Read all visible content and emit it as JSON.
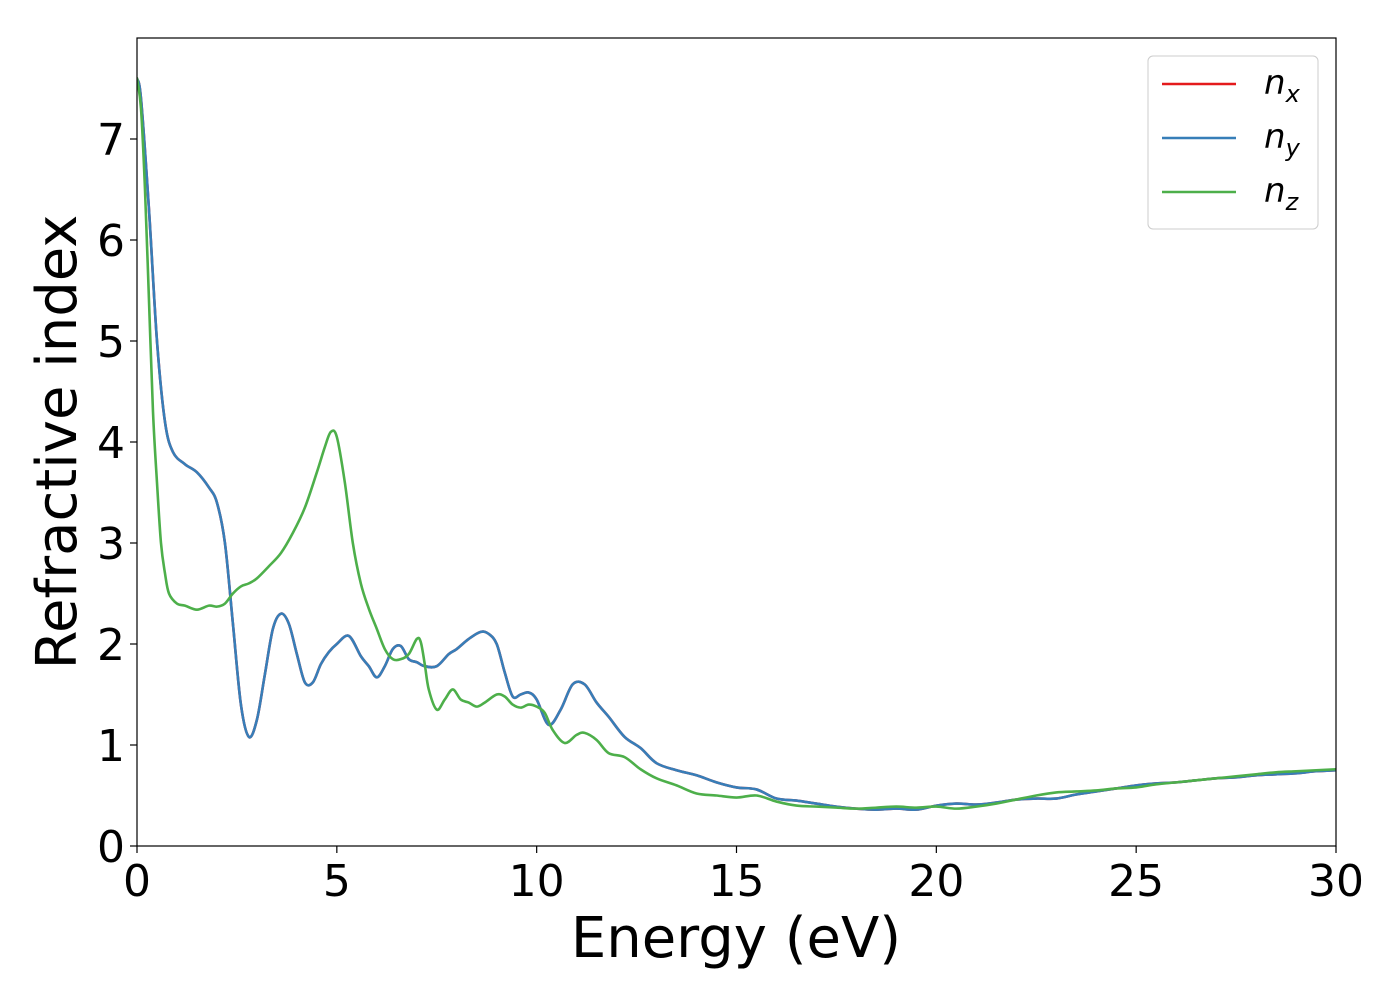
{
  "chart_data": {
    "type": "line",
    "xlabel": "Energy (eV)",
    "ylabel": "Refractive index",
    "xlim": [
      0,
      30
    ],
    "ylim": [
      0,
      8.0
    ],
    "xticks": [
      "0",
      "5",
      "10",
      "15",
      "20",
      "25",
      "30"
    ],
    "yticks": [
      "0",
      "1",
      "2",
      "3",
      "4",
      "5",
      "6",
      "7"
    ],
    "grid": false,
    "legend_position": "top-right",
    "colors": {
      "n_x": "#e41a1c",
      "n_y": "#377eb8",
      "n_z": "#4daf4a"
    },
    "series": [
      {
        "name": "n_x",
        "legend_base": "n",
        "legend_sub": "x",
        "x": [
          0,
          0.1,
          0.3,
          0.5,
          0.7,
          0.9,
          1.2,
          1.5,
          1.8,
          2.0,
          2.2,
          2.4,
          2.6,
          2.8,
          3.0,
          3.2,
          3.4,
          3.6,
          3.8,
          4.0,
          4.2,
          4.4,
          4.6,
          4.8,
          5.0,
          5.3,
          5.6,
          5.8,
          6.0,
          6.2,
          6.4,
          6.6,
          6.8,
          7.0,
          7.2,
          7.5,
          7.8,
          8.0,
          8.3,
          8.6,
          8.8,
          9.0,
          9.2,
          9.4,
          9.6,
          9.8,
          10.0,
          10.3,
          10.6,
          10.9,
          11.2,
          11.5,
          11.8,
          12.2,
          12.6,
          13.0,
          13.5,
          14.0,
          14.5,
          15.0,
          15.5,
          16.0,
          16.5,
          17.0,
          17.5,
          18.0,
          18.5,
          19.0,
          19.5,
          20.0,
          20.5,
          21.0,
          21.5,
          22.0,
          22.5,
          23.0,
          23.5,
          24.0,
          24.5,
          25.0,
          25.5,
          26.0,
          26.5,
          27.0,
          27.5,
          28.0,
          28.5,
          29.0,
          29.5,
          30.0
        ],
        "values": [
          7.6,
          7.4,
          6.3,
          5.0,
          4.2,
          3.9,
          3.78,
          3.7,
          3.55,
          3.4,
          3.0,
          2.2,
          1.4,
          1.08,
          1.25,
          1.7,
          2.15,
          2.3,
          2.2,
          1.9,
          1.62,
          1.62,
          1.8,
          1.92,
          2.0,
          2.08,
          1.88,
          1.78,
          1.67,
          1.78,
          1.95,
          1.98,
          1.85,
          1.82,
          1.78,
          1.78,
          1.9,
          1.95,
          2.05,
          2.12,
          2.1,
          2.0,
          1.72,
          1.48,
          1.5,
          1.52,
          1.45,
          1.2,
          1.35,
          1.6,
          1.6,
          1.42,
          1.28,
          1.08,
          0.97,
          0.82,
          0.75,
          0.7,
          0.63,
          0.58,
          0.56,
          0.47,
          0.45,
          0.42,
          0.39,
          0.37,
          0.36,
          0.37,
          0.36,
          0.4,
          0.42,
          0.41,
          0.43,
          0.46,
          0.47,
          0.47,
          0.51,
          0.54,
          0.57,
          0.6,
          0.62,
          0.63,
          0.65,
          0.67,
          0.68,
          0.7,
          0.71,
          0.72,
          0.74,
          0.75
        ]
      },
      {
        "name": "n_y",
        "legend_base": "n",
        "legend_sub": "y",
        "x": [
          0,
          0.1,
          0.3,
          0.5,
          0.7,
          0.9,
          1.2,
          1.5,
          1.8,
          2.0,
          2.2,
          2.4,
          2.6,
          2.8,
          3.0,
          3.2,
          3.4,
          3.6,
          3.8,
          4.0,
          4.2,
          4.4,
          4.6,
          4.8,
          5.0,
          5.3,
          5.6,
          5.8,
          6.0,
          6.2,
          6.4,
          6.6,
          6.8,
          7.0,
          7.2,
          7.5,
          7.8,
          8.0,
          8.3,
          8.6,
          8.8,
          9.0,
          9.2,
          9.4,
          9.6,
          9.8,
          10.0,
          10.3,
          10.6,
          10.9,
          11.2,
          11.5,
          11.8,
          12.2,
          12.6,
          13.0,
          13.5,
          14.0,
          14.5,
          15.0,
          15.5,
          16.0,
          16.5,
          17.0,
          17.5,
          18.0,
          18.5,
          19.0,
          19.5,
          20.0,
          20.5,
          21.0,
          21.5,
          22.0,
          22.5,
          23.0,
          23.5,
          24.0,
          24.5,
          25.0,
          25.5,
          26.0,
          26.5,
          27.0,
          27.5,
          28.0,
          28.5,
          29.0,
          29.5,
          30.0
        ],
        "values": [
          7.6,
          7.4,
          6.3,
          5.0,
          4.2,
          3.9,
          3.78,
          3.7,
          3.55,
          3.4,
          3.0,
          2.2,
          1.4,
          1.08,
          1.25,
          1.7,
          2.15,
          2.3,
          2.2,
          1.9,
          1.62,
          1.62,
          1.8,
          1.92,
          2.0,
          2.08,
          1.88,
          1.78,
          1.67,
          1.78,
          1.95,
          1.98,
          1.85,
          1.82,
          1.78,
          1.78,
          1.9,
          1.95,
          2.05,
          2.12,
          2.1,
          2.0,
          1.72,
          1.48,
          1.5,
          1.52,
          1.45,
          1.2,
          1.35,
          1.6,
          1.6,
          1.42,
          1.28,
          1.08,
          0.97,
          0.82,
          0.75,
          0.7,
          0.63,
          0.58,
          0.56,
          0.47,
          0.45,
          0.42,
          0.39,
          0.37,
          0.36,
          0.37,
          0.36,
          0.4,
          0.42,
          0.41,
          0.43,
          0.46,
          0.47,
          0.47,
          0.51,
          0.54,
          0.57,
          0.6,
          0.62,
          0.63,
          0.65,
          0.67,
          0.68,
          0.7,
          0.71,
          0.72,
          0.74,
          0.75
        ]
      },
      {
        "name": "n_z",
        "legend_base": "n",
        "legend_sub": "z",
        "x": [
          0,
          0.1,
          0.2,
          0.3,
          0.4,
          0.5,
          0.6,
          0.7,
          0.8,
          1.0,
          1.2,
          1.5,
          1.8,
          2.0,
          2.2,
          2.4,
          2.6,
          2.8,
          3.0,
          3.3,
          3.6,
          3.9,
          4.2,
          4.5,
          4.7,
          4.85,
          5.0,
          5.2,
          5.4,
          5.6,
          5.8,
          6.0,
          6.2,
          6.4,
          6.6,
          6.8,
          7.0,
          7.1,
          7.2,
          7.3,
          7.5,
          7.7,
          7.9,
          8.1,
          8.3,
          8.5,
          8.7,
          9.0,
          9.2,
          9.4,
          9.6,
          9.8,
          10.0,
          10.2,
          10.4,
          10.7,
          11.0,
          11.2,
          11.5,
          11.8,
          12.2,
          12.6,
          13.0,
          13.5,
          14.0,
          14.5,
          15.0,
          15.5,
          16.0,
          16.5,
          17.0,
          17.5,
          18.0,
          18.5,
          19.0,
          19.5,
          20.0,
          20.5,
          21.0,
          21.5,
          22.0,
          22.5,
          23.0,
          23.5,
          24.0,
          24.5,
          25.0,
          25.5,
          26.0,
          26.5,
          27.0,
          27.5,
          28.0,
          28.5,
          29.0,
          29.5,
          30.0
        ],
        "values": [
          7.6,
          7.3,
          6.5,
          5.4,
          4.3,
          3.6,
          3.0,
          2.7,
          2.5,
          2.4,
          2.38,
          2.34,
          2.38,
          2.37,
          2.4,
          2.5,
          2.57,
          2.6,
          2.65,
          2.77,
          2.9,
          3.1,
          3.35,
          3.7,
          3.95,
          4.1,
          4.05,
          3.6,
          3.0,
          2.6,
          2.35,
          2.15,
          1.95,
          1.85,
          1.85,
          1.9,
          2.05,
          2.02,
          1.8,
          1.55,
          1.35,
          1.45,
          1.55,
          1.45,
          1.42,
          1.38,
          1.42,
          1.5,
          1.48,
          1.4,
          1.37,
          1.4,
          1.38,
          1.32,
          1.15,
          1.02,
          1.1,
          1.12,
          1.05,
          0.92,
          0.88,
          0.76,
          0.67,
          0.6,
          0.52,
          0.5,
          0.48,
          0.5,
          0.44,
          0.4,
          0.39,
          0.38,
          0.37,
          0.38,
          0.39,
          0.38,
          0.39,
          0.37,
          0.39,
          0.42,
          0.46,
          0.5,
          0.53,
          0.54,
          0.55,
          0.57,
          0.58,
          0.61,
          0.63,
          0.65,
          0.67,
          0.69,
          0.71,
          0.73,
          0.74,
          0.75,
          0.76
        ]
      }
    ]
  }
}
